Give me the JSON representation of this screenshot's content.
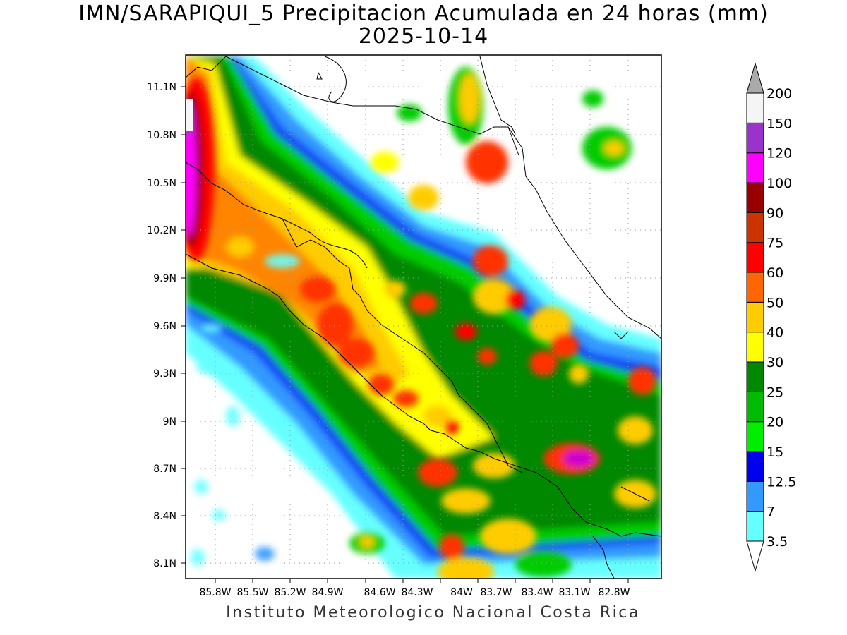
{
  "title": "IMN/SARAPIQUI_5 Precipitacion Acumulada en 24 horas (mm)",
  "date": "2025-10-14",
  "footer": "Instituto Meteorologico Nacional Costa Rica",
  "lat_labels": [
    "11.1N",
    "10.8N",
    "10.5N",
    "10.2N",
    "9.9N",
    "9.6N",
    "9.3N",
    "9N",
    "8.7N",
    "8.4N",
    "8.1N"
  ],
  "lon_labels": [
    "85.8W",
    "85.5W",
    "85.2W",
    "84.9W",
    "84.6W",
    "84.3W",
    "84W",
    "83.7W",
    "83.4W",
    "83.1W",
    "82.8W"
  ],
  "colorbar": {
    "levels": [
      "3.5",
      "7",
      "12.5",
      "15",
      "20",
      "25",
      "30",
      "40",
      "50",
      "60",
      "75",
      "90",
      "100",
      "120",
      "150",
      "200"
    ],
    "colors": [
      "#66ffff",
      "#3399ff",
      "#0000ee",
      "#00ee00",
      "#00bb00",
      "#008800",
      "#ffff00",
      "#ffcc00",
      "#ff6600",
      "#ff0000",
      "#cc3300",
      "#990000",
      "#ff00ff",
      "#9933cc",
      "#f5f5f5",
      "#aaaaaa"
    ],
    "under_color": "#ffffff"
  }
}
